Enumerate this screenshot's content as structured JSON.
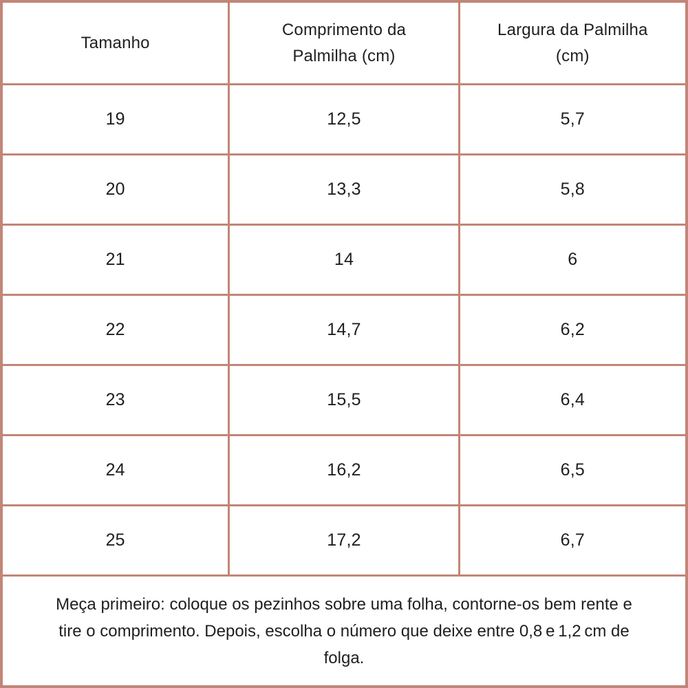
{
  "chart_data": {
    "type": "table",
    "columns": [
      {
        "label": "Tamanho",
        "lines": [
          "Tamanho"
        ]
      },
      {
        "label": "Comprimento da Palmilha (cm)",
        "lines": [
          "Comprimento da",
          "Palmilha (cm)"
        ]
      },
      {
        "label": "Largura da Palmilha (cm)",
        "lines": [
          "Largura da Palmilha",
          "(cm)"
        ]
      }
    ],
    "rows": [
      [
        "19",
        "12,5",
        "5,7"
      ],
      [
        "20",
        "13,3",
        "5,8"
      ],
      [
        "21",
        "14",
        "6"
      ],
      [
        "22",
        "14,7",
        "6,2"
      ],
      [
        "23",
        "15,5",
        "6,4"
      ],
      [
        "24",
        "16,2",
        "6,5"
      ],
      [
        "25",
        "17,2",
        "6,7"
      ]
    ]
  },
  "footer": {
    "lines": [
      "Meça primeiro: coloque os pezinhos sobre uma folha, contorne-os bem rente e",
      "tire o comprimento. Depois, escolha o número que deixe entre 0,8 e 1,2 cm de",
      "folga."
    ]
  },
  "colors": {
    "border": "#C28577",
    "text": "#1F1F1F",
    "background": "#FFFFFF"
  }
}
